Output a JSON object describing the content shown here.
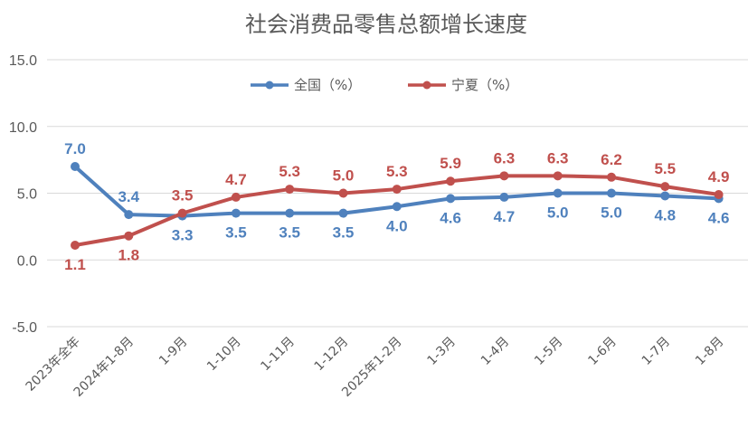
{
  "chart_data": {
    "type": "line",
    "title": "社会消费品零售总额增长速度",
    "categories": [
      "2023年全年",
      "2024年1-8月",
      "1-9月",
      "1-10月",
      "1-11月",
      "1-12月",
      "2025年1-2月",
      "1-3月",
      "1-4月",
      "1-5月",
      "1-6月",
      "1-7月",
      "1-8月"
    ],
    "series": [
      {
        "name": "全国（%）",
        "color": "#4F81BD",
        "values": [
          7.0,
          3.4,
          3.3,
          3.5,
          3.5,
          3.5,
          4.0,
          4.6,
          4.7,
          5.0,
          5.0,
          4.8,
          4.6
        ],
        "labels": [
          "7.0",
          "3.4",
          "3.3",
          "3.5",
          "3.5",
          "3.5",
          "4.0",
          "4.6",
          "4.7",
          "5.0",
          "5.0",
          "4.8",
          "4.6"
        ]
      },
      {
        "name": "宁夏（%）",
        "color": "#C0504D",
        "values": [
          1.1,
          1.8,
          3.5,
          4.7,
          5.3,
          5.0,
          5.3,
          5.9,
          6.3,
          6.3,
          6.2,
          5.5,
          4.9
        ],
        "labels": [
          "1.1",
          "1.8",
          "3.5",
          "4.7",
          "5.3",
          "5.0",
          "5.3",
          "5.9",
          "6.3",
          "6.3",
          "6.2",
          "5.5",
          "4.9"
        ]
      }
    ],
    "ylim": [
      -5.0,
      15.0
    ],
    "yticks": [
      "15.0",
      "10.0",
      "5.0",
      "0.0",
      "-5.0"
    ],
    "ytick_values": [
      15,
      10,
      5,
      0,
      -5
    ],
    "grid": true,
    "legend": "top"
  }
}
